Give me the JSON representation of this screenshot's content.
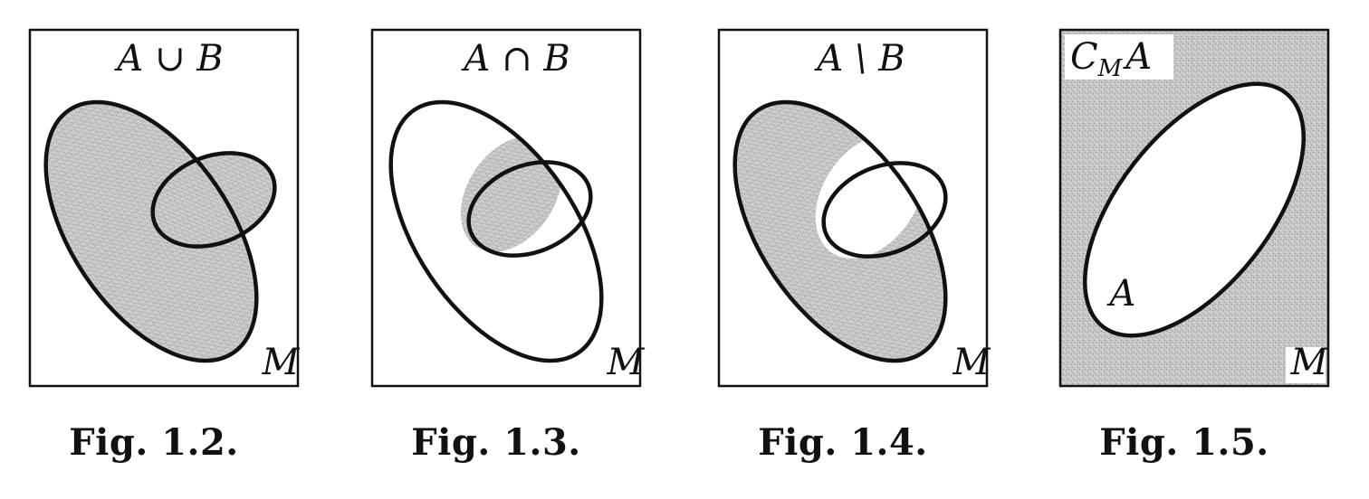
{
  "colors": {
    "ink": "#111111",
    "shade": "#c9c9c9",
    "background": "#ffffff"
  },
  "figures": [
    {
      "operation": "union",
      "title": "A ∪ B",
      "universe_label": "M",
      "caption": "Fig. 1.2."
    },
    {
      "operation": "intersection",
      "title": "A ∩ B",
      "universe_label": "M",
      "caption": "Fig. 1.3."
    },
    {
      "operation": "difference",
      "title": "A \\ B",
      "universe_label": "M",
      "caption": "Fig. 1.4."
    },
    {
      "operation": "complement",
      "title_main": "C",
      "title_sub": "M",
      "title_set": "A",
      "set_label": "A",
      "universe_label": "M",
      "caption": "Fig. 1.5."
    }
  ]
}
